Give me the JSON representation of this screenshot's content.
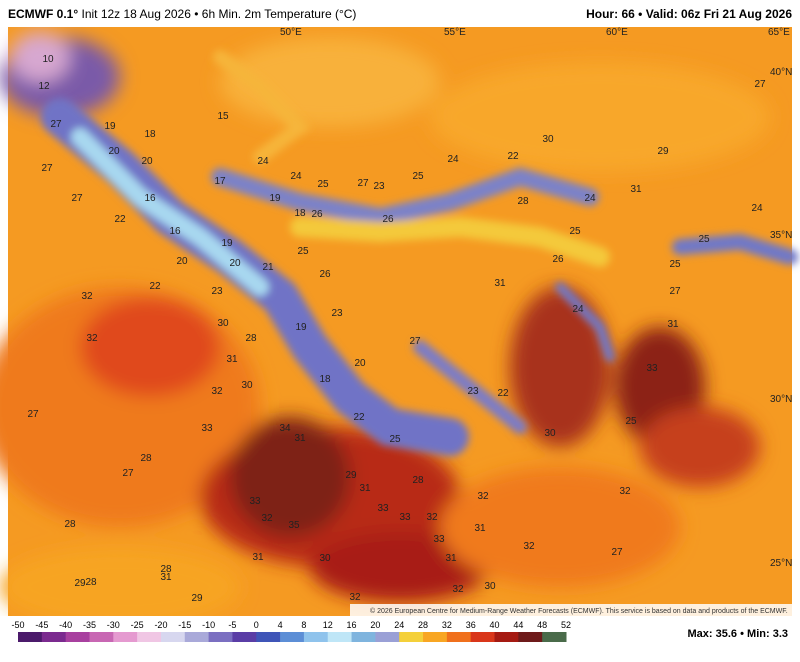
{
  "header": {
    "model": "ECMWF 0.1°",
    "description": "Init 12z 18 Aug 2026 • 6h Min. 2m Temperature (°C)",
    "hour_label": "Hour:",
    "hour": 66,
    "separator": "•",
    "valid_label": "Valid:",
    "valid": "06z Fri 21 Aug 2026"
  },
  "map": {
    "graticule": [
      "50°E",
      "55°E",
      "60°E",
      "65°E",
      "40°N",
      "35°N",
      "30°N",
      "25°N"
    ],
    "labels": [
      10,
      12,
      27,
      19,
      18,
      20,
      20,
      15,
      24,
      17,
      24,
      25,
      27,
      23,
      25,
      24,
      22,
      30,
      29,
      31,
      24,
      27,
      27,
      28,
      24,
      22,
      16,
      19,
      18,
      26,
      26,
      25,
      25,
      16,
      19,
      25,
      20,
      20,
      21,
      26,
      26,
      25,
      22,
      23,
      32,
      31,
      27,
      24,
      23,
      30,
      28,
      19,
      27,
      31,
      32,
      31,
      20,
      33,
      18,
      32,
      30,
      23,
      22,
      27,
      33,
      34,
      31,
      22,
      25,
      30,
      25,
      28,
      27,
      29,
      28,
      32,
      31,
      32,
      33,
      33,
      33,
      32,
      32,
      35,
      33,
      31,
      31,
      30,
      31,
      32,
      27,
      28,
      28,
      31,
      29,
      28,
      32,
      30,
      29,
      32,
      27
    ],
    "copyright": "© 2026 European Centre for Medium-Range Weather Forecasts (ECMWF). This service is based on data and products of the ECMWF."
  },
  "colorbar": {
    "ticks": [
      -50,
      -45,
      -40,
      -35,
      -30,
      -25,
      -20,
      -15,
      -10,
      -5,
      0,
      4,
      8,
      12,
      16,
      20,
      24,
      28,
      32,
      36,
      40,
      44,
      48,
      52
    ],
    "colors": [
      "#4b1a6b",
      "#7b2a8f",
      "#a8409f",
      "#c867b3",
      "#e59ad0",
      "#f0c6e4",
      "#d7d7ef",
      "#a9a9d9",
      "#7b6fc1",
      "#5a3da6",
      "#3f55b8",
      "#5c8ed6",
      "#8fc3ec",
      "#bfe6f7",
      "#7fb4de",
      "#9aa0d6",
      "#f4d03a",
      "#f8a623",
      "#f0701c",
      "#d9361a",
      "#a51a12",
      "#6e1a1a",
      "#4a6b4a"
    ]
  },
  "footer": {
    "max_label": "Max:",
    "max": 35.6,
    "separator": "•",
    "min_label": "Min:",
    "min": 3.3
  }
}
